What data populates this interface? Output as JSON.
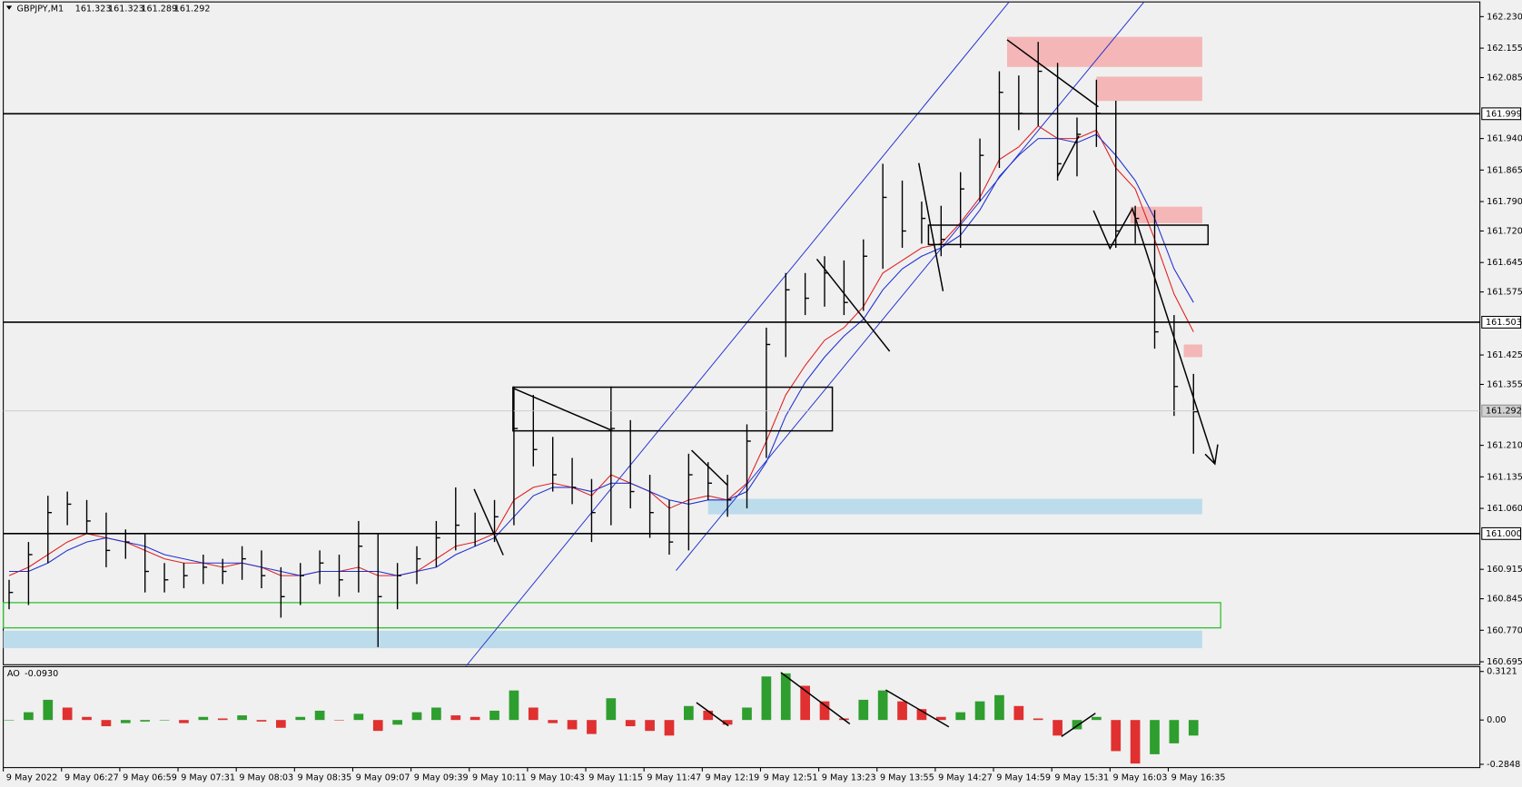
{
  "chart_data": {
    "type": "candlestick",
    "title": "GBPJPY,M1",
    "ohlc": [
      161.323,
      161.323,
      161.289,
      161.292
    ],
    "close": [
      160.86,
      160.95,
      161.05,
      161.07,
      161.03,
      160.96,
      160.98,
      160.91,
      160.89,
      160.9,
      160.92,
      160.91,
      160.94,
      160.9,
      160.85,
      160.9,
      160.93,
      160.89,
      160.97,
      160.85,
      160.9,
      160.94,
      160.99,
      161.02,
      161.0,
      161.04,
      161.25,
      161.2,
      161.14,
      161.11,
      161.05,
      161.25,
      161.1,
      161.05,
      160.98,
      161.14,
      161.12,
      161.08,
      161.22,
      161.45,
      161.58,
      161.56,
      161.62,
      161.55,
      161.66,
      161.8,
      161.72,
      161.75,
      161.7,
      161.82,
      161.9,
      162.05,
      162.0,
      162.1,
      161.88,
      161.95,
      162.0,
      161.72,
      161.75,
      161.48,
      161.35,
      161.29
    ],
    "high": [
      160.89,
      160.98,
      161.09,
      161.1,
      161.08,
      161.05,
      161.01,
      161.0,
      160.93,
      160.93,
      160.95,
      160.94,
      160.97,
      160.96,
      160.92,
      160.93,
      160.96,
      160.95,
      161.03,
      161.0,
      160.93,
      160.97,
      161.03,
      161.11,
      161.05,
      161.08,
      161.35,
      161.33,
      161.23,
      161.18,
      161.13,
      161.35,
      161.27,
      161.14,
      161.08,
      161.19,
      161.17,
      161.14,
      161.26,
      161.49,
      161.62,
      161.62,
      161.66,
      161.65,
      161.7,
      161.88,
      161.84,
      161.79,
      161.78,
      161.86,
      161.94,
      162.1,
      162.09,
      162.17,
      162.12,
      161.99,
      162.08,
      162.03,
      161.78,
      161.77,
      161.52,
      161.38
    ],
    "low": [
      160.82,
      160.83,
      160.93,
      161.02,
      161.0,
      160.92,
      160.94,
      160.86,
      160.86,
      160.87,
      160.88,
      160.88,
      160.89,
      160.87,
      160.8,
      160.83,
      160.88,
      160.85,
      160.86,
      160.73,
      160.82,
      160.88,
      160.92,
      160.96,
      160.97,
      160.98,
      161.02,
      161.16,
      161.1,
      161.07,
      160.98,
      161.02,
      161.06,
      160.99,
      160.95,
      160.96,
      161.08,
      161.04,
      161.06,
      161.18,
      161.42,
      161.52,
      161.54,
      161.52,
      161.53,
      161.63,
      161.68,
      161.69,
      161.66,
      161.68,
      161.79,
      161.87,
      161.96,
      161.97,
      161.84,
      161.85,
      161.92,
      161.68,
      161.69,
      161.44,
      161.28,
      161.19
    ],
    "ma": [
      {
        "color": "#e02020",
        "values": [
          160.9,
          160.92,
          160.95,
          160.98,
          161.0,
          160.99,
          160.98,
          160.96,
          160.94,
          160.93,
          160.93,
          160.92,
          160.93,
          160.92,
          160.9,
          160.9,
          160.91,
          160.91,
          160.92,
          160.9,
          160.9,
          160.91,
          160.94,
          160.97,
          160.98,
          161.0,
          161.08,
          161.11,
          161.12,
          161.11,
          161.09,
          161.14,
          161.12,
          161.1,
          161.06,
          161.08,
          161.09,
          161.08,
          161.12,
          161.22,
          161.33,
          161.4,
          161.46,
          161.49,
          161.54,
          161.62,
          161.65,
          161.68,
          161.69,
          161.74,
          161.8,
          161.89,
          161.92,
          161.97,
          161.94,
          161.94,
          161.96,
          161.87,
          161.82,
          161.7,
          161.57,
          161.48
        ]
      },
      {
        "color": "#2030d0",
        "values": [
          160.91,
          160.91,
          160.93,
          160.96,
          160.98,
          160.99,
          160.98,
          160.97,
          160.95,
          160.94,
          160.93,
          160.93,
          160.93,
          160.92,
          160.91,
          160.9,
          160.91,
          160.91,
          160.91,
          160.91,
          160.9,
          160.91,
          160.92,
          160.95,
          160.97,
          160.99,
          161.04,
          161.09,
          161.11,
          161.11,
          161.1,
          161.12,
          161.12,
          161.1,
          161.08,
          161.07,
          161.08,
          161.08,
          161.1,
          161.17,
          161.28,
          161.36,
          161.42,
          161.47,
          161.51,
          161.58,
          161.63,
          161.66,
          161.68,
          161.71,
          161.77,
          161.85,
          161.9,
          161.94,
          161.94,
          161.93,
          161.95,
          161.9,
          161.84,
          161.75,
          161.63,
          161.55
        ]
      }
    ],
    "ylim": [
      160.688,
      162.265
    ],
    "yticks": [
      {
        "value": 162.23,
        "label": "162.230"
      },
      {
        "value": 162.155,
        "label": "162.155"
      },
      {
        "value": 162.085,
        "label": "162.085"
      },
      {
        "value": 161.94,
        "label": "161.940"
      },
      {
        "value": 161.865,
        "label": "161.865"
      },
      {
        "value": 161.79,
        "label": "161.790"
      },
      {
        "value": 161.72,
        "label": "161.720"
      },
      {
        "value": 161.645,
        "label": "161.645"
      },
      {
        "value": 161.575,
        "label": "161.575"
      },
      {
        "value": 161.425,
        "label": "161.425"
      },
      {
        "value": 161.355,
        "label": "161.355"
      },
      {
        "value": 161.21,
        "label": "161.210"
      },
      {
        "value": 161.135,
        "label": "161.135"
      },
      {
        "value": 161.06,
        "label": "161.060"
      },
      {
        "value": 160.915,
        "label": "160.915"
      },
      {
        "value": 160.845,
        "label": "160.845"
      },
      {
        "value": 160.77,
        "label": "160.770"
      },
      {
        "value": 160.695,
        "label": "160.695"
      }
    ],
    "levels": [
      161.999,
      161.503,
      {
        "value": 161,
        "label": "161.000"
      }
    ],
    "last_price": 161.292,
    "x_labels": [
      "9 May 2022",
      "9 May 06:27",
      "9 May 06:59",
      "9 May 07:31",
      "9 May 08:03",
      "9 May 08:35",
      "9 May 09:07",
      "9 May 09:39",
      "9 May 10:11",
      "9 May 10:43",
      "9 May 11:15",
      "9 May 11:47",
      "9 May 12:19",
      "9 May 12:51",
      "9 May 13:23",
      "9 May 13:55",
      "9 May 14:27",
      "9 May 14:59",
      "9 May 15:31",
      "9 May 16:03",
      "9 May 16:35"
    ],
    "indicator": {
      "type": "bar",
      "name": "AO",
      "current": {
        "value": -0.093,
        "label": "-0.0930"
      },
      "up_color": "#2e9e2e",
      "down_color": "#e03030",
      "values": [
        0.0,
        0.05,
        0.13,
        0.08,
        0.02,
        -0.04,
        -0.02,
        -0.01,
        0.0,
        -0.02,
        0.02,
        0.01,
        0.03,
        -0.01,
        -0.05,
        0.02,
        0.06,
        0.0,
        0.04,
        -0.07,
        -0.03,
        0.05,
        0.08,
        0.03,
        0.02,
        0.06,
        0.19,
        0.08,
        -0.02,
        -0.06,
        -0.09,
        0.14,
        -0.04,
        -0.07,
        -0.1,
        0.09,
        0.06,
        -0.03,
        0.08,
        0.28,
        0.3,
        0.22,
        0.12,
        0.01,
        0.13,
        0.19,
        0.12,
        0.07,
        0.02,
        0.05,
        0.12,
        0.16,
        0.09,
        0.01,
        -0.1,
        -0.06,
        0.02,
        -0.2,
        -0.28,
        -0.22,
        -0.15,
        -0.1
      ],
      "ylim": [
        -0.306,
        0.343
      ],
      "yticks": [
        0.3121,
        {
          "value": 0,
          "label": "0.00"
        },
        -0.2848
      ]
    }
  }
}
